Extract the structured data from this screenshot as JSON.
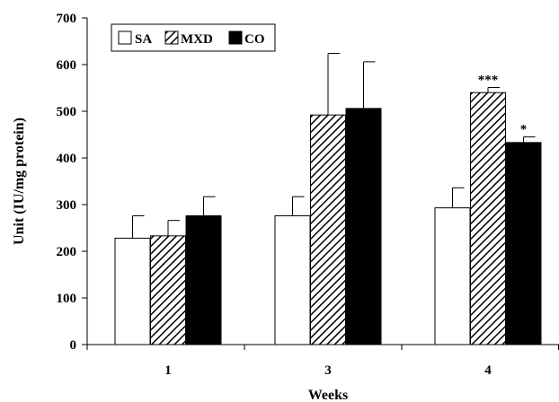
{
  "chart_data": {
    "type": "bar",
    "xlabel": "Weeks",
    "ylabel": "Unit (IU/mg protein)",
    "categories": [
      "1",
      "3",
      "4"
    ],
    "ylim": [
      0,
      700
    ],
    "yticks": [
      "0",
      "100",
      "200",
      "300",
      "400",
      "500",
      "600",
      "700"
    ],
    "series": [
      {
        "name": "SA",
        "values": [
          228,
          276,
          293
        ],
        "errors": [
          48,
          41,
          43
        ],
        "fill": "solid-white"
      },
      {
        "name": "MXD",
        "values": [
          233,
          492,
          540
        ],
        "errors": [
          33,
          132,
          11
        ],
        "fill": "diagonal-hatch"
      },
      {
        "name": "CO",
        "values": [
          276,
          506,
          433
        ],
        "errors": [
          41,
          100,
          12
        ],
        "fill": "solid-black"
      }
    ],
    "annotations": [
      {
        "category": "4",
        "series": "MXD",
        "text": "***"
      },
      {
        "category": "4",
        "series": "CO",
        "text": "*"
      }
    ],
    "legend_position": "top-left",
    "grid": false,
    "colors": {
      "bar_stroke": "#000000",
      "white_fill": "#ffffff",
      "black_fill": "#000000"
    }
  }
}
